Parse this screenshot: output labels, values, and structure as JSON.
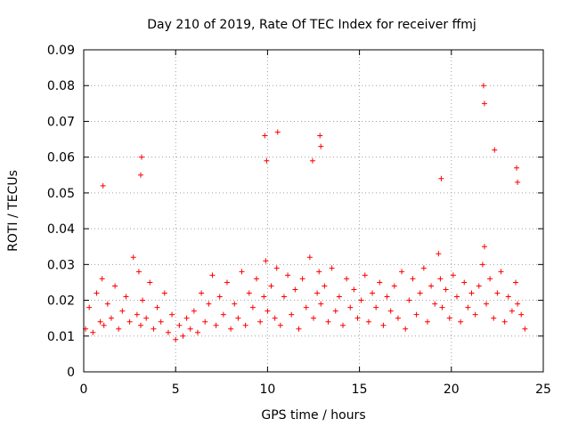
{
  "chart_data": {
    "type": "scatter",
    "title": "Day 210 of 2019, Rate Of TEC Index for receiver ffmj",
    "xlabel": "GPS time / hours",
    "ylabel": "ROTI / TECUs",
    "xlim": [
      0,
      25
    ],
    "ylim": [
      0,
      0.09
    ],
    "xticks": [
      0,
      5,
      10,
      15,
      20,
      25
    ],
    "xtick_labels": [
      "0",
      "5",
      "10",
      "15",
      "20",
      "25"
    ],
    "yticks": [
      0,
      0.01,
      0.02,
      0.03,
      0.04,
      0.05,
      0.06,
      0.07,
      0.08,
      0.09
    ],
    "ytick_labels": [
      "0",
      "0.01",
      "0.02",
      "0.03",
      "0.04",
      "0.05",
      "0.06",
      "0.07",
      "0.08",
      "0.09"
    ],
    "grid": true,
    "marker": "+",
    "color": "#ff0000",
    "series": [
      {
        "name": "ROTI",
        "x": [
          0.1,
          0.3,
          0.5,
          0.7,
          0.9,
          1.0,
          1.1,
          1.3,
          1.5,
          1.7,
          1.9,
          2.1,
          2.3,
          2.5,
          2.7,
          2.9,
          3.0,
          3.1,
          3.2,
          3.4,
          3.6,
          3.8,
          4.0,
          4.2,
          4.4,
          4.6,
          4.8,
          5.0,
          5.2,
          5.4,
          5.6,
          5.8,
          6.0,
          6.2,
          6.4,
          6.6,
          6.8,
          7.0,
          7.2,
          7.4,
          7.6,
          7.8,
          8.0,
          8.2,
          8.4,
          8.6,
          8.8,
          9.0,
          9.2,
          9.4,
          9.6,
          9.8,
          9.9,
          10.0,
          10.2,
          10.4,
          10.5,
          10.7,
          10.9,
          11.1,
          11.3,
          11.5,
          11.7,
          11.9,
          12.1,
          12.3,
          12.5,
          12.7,
          12.8,
          12.9,
          13.1,
          13.3,
          13.5,
          13.7,
          13.9,
          14.1,
          14.3,
          14.5,
          14.7,
          14.9,
          15.1,
          15.3,
          15.5,
          15.7,
          15.9,
          16.1,
          16.3,
          16.5,
          16.7,
          16.9,
          17.1,
          17.3,
          17.5,
          17.7,
          17.9,
          18.1,
          18.3,
          18.5,
          18.7,
          18.9,
          19.1,
          19.3,
          19.4,
          19.5,
          19.7,
          19.9,
          20.1,
          20.3,
          20.5,
          20.7,
          20.9,
          21.1,
          21.3,
          21.5,
          21.7,
          21.8,
          21.9,
          22.1,
          22.3,
          22.5,
          22.7,
          22.9,
          23.1,
          23.3,
          23.5,
          23.6,
          23.8,
          24.0,
          1.05,
          3.1,
          3.15,
          9.85,
          9.95,
          10.55,
          12.45,
          12.85,
          12.9,
          19.45,
          21.75,
          21.8,
          22.35,
          23.55,
          23.6
        ],
        "y": [
          0.012,
          0.018,
          0.011,
          0.022,
          0.014,
          0.026,
          0.013,
          0.019,
          0.015,
          0.024,
          0.012,
          0.017,
          0.021,
          0.014,
          0.032,
          0.016,
          0.028,
          0.013,
          0.02,
          0.015,
          0.025,
          0.012,
          0.018,
          0.014,
          0.022,
          0.011,
          0.016,
          0.009,
          0.013,
          0.01,
          0.015,
          0.012,
          0.017,
          0.011,
          0.022,
          0.014,
          0.019,
          0.027,
          0.013,
          0.021,
          0.016,
          0.025,
          0.012,
          0.019,
          0.015,
          0.028,
          0.013,
          0.022,
          0.018,
          0.026,
          0.014,
          0.021,
          0.031,
          0.017,
          0.024,
          0.015,
          0.029,
          0.013,
          0.021,
          0.027,
          0.016,
          0.023,
          0.012,
          0.026,
          0.018,
          0.032,
          0.015,
          0.022,
          0.028,
          0.019,
          0.024,
          0.014,
          0.029,
          0.017,
          0.021,
          0.013,
          0.026,
          0.018,
          0.023,
          0.015,
          0.02,
          0.027,
          0.014,
          0.022,
          0.018,
          0.025,
          0.013,
          0.021,
          0.017,
          0.024,
          0.015,
          0.028,
          0.012,
          0.02,
          0.026,
          0.016,
          0.022,
          0.029,
          0.014,
          0.024,
          0.019,
          0.033,
          0.026,
          0.018,
          0.023,
          0.015,
          0.027,
          0.021,
          0.014,
          0.025,
          0.018,
          0.022,
          0.016,
          0.024,
          0.03,
          0.035,
          0.019,
          0.026,
          0.015,
          0.022,
          0.028,
          0.014,
          0.021,
          0.017,
          0.025,
          0.019,
          0.016,
          0.012,
          0.052,
          0.055,
          0.06,
          0.066,
          0.059,
          0.067,
          0.059,
          0.066,
          0.063,
          0.054,
          0.08,
          0.075,
          0.062,
          0.057,
          0.053
        ]
      }
    ]
  }
}
